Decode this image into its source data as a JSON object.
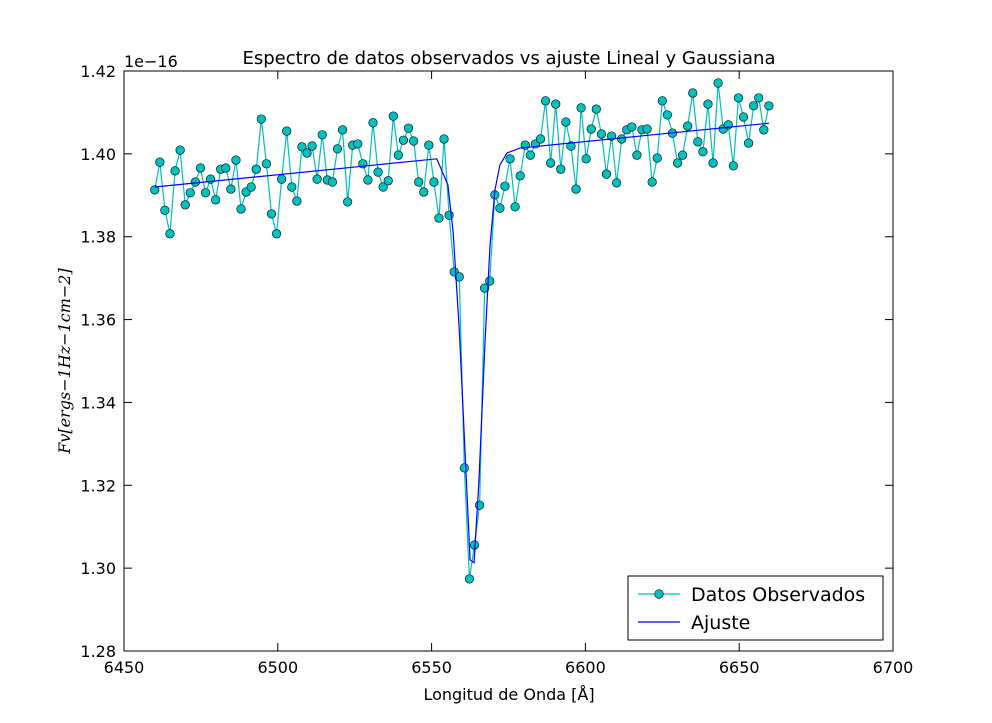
{
  "chart_data": {
    "type": "line",
    "title": "Espectro de datos observados vs ajuste Lineal y Gaussiana",
    "x_label": "Longitud de Onda [Å]",
    "y_label": "Fv[ergs−1Hz−1cm−2]",
    "offset_text": "1e−16",
    "xlim": [
      6450,
      6700
    ],
    "xticks": [
      6450,
      6500,
      6550,
      6600,
      6650,
      6700
    ],
    "ylim": [
      1.28,
      1.42
    ],
    "yticks": [
      1.28,
      {
        "value": 1.3,
        "label": "1.30"
      },
      1.32,
      1.34,
      1.36,
      1.38,
      {
        "value": 1.4,
        "label": "1.40"
      },
      1.42
    ],
    "legend": "lower right",
    "series": [
      {
        "name": "Datos Observados",
        "color": "#00bfbf",
        "marker": "o",
        "x": [
          6460.0,
          6461.65,
          6463.3,
          6464.95,
          6466.6,
          6468.25,
          6469.9,
          6471.55,
          6473.2,
          6474.85,
          6476.5,
          6478.15,
          6479.8,
          6481.45,
          6483.1,
          6484.75,
          6486.4,
          6488.05,
          6489.7,
          6491.35,
          6493.0,
          6494.65,
          6496.3,
          6497.95,
          6499.6,
          6501.25,
          6502.9,
          6504.55,
          6506.2,
          6507.85,
          6509.5,
          6511.15,
          6512.8,
          6514.45,
          6516.1,
          6517.75,
          6519.4,
          6521.05,
          6522.7,
          6524.35,
          6526.0,
          6527.65,
          6529.3,
          6530.95,
          6532.6,
          6534.25,
          6535.9,
          6537.55,
          6539.2,
          6540.85,
          6542.5,
          6544.15,
          6545.8,
          6547.45,
          6549.1,
          6550.75,
          6552.4,
          6554.05,
          6555.7,
          6557.35,
          6559.0,
          6560.65,
          6562.3,
          6563.95,
          6565.6,
          6567.25,
          6568.9,
          6570.55,
          6572.2,
          6573.85,
          6575.5,
          6577.15,
          6578.8,
          6580.45,
          6582.1,
          6583.75,
          6585.4,
          6587.05,
          6588.7,
          6590.35,
          6592.0,
          6593.65,
          6595.3,
          6596.95,
          6598.6,
          6600.25,
          6601.9,
          6603.55,
          6605.2,
          6606.85,
          6608.5,
          6610.15,
          6611.8,
          6613.45,
          6615.1,
          6616.75,
          6618.4,
          6620.05,
          6621.7,
          6623.35,
          6625.0,
          6626.65,
          6628.3,
          6629.95,
          6631.6,
          6633.25,
          6634.9,
          6636.55,
          6638.2,
          6639.85,
          6641.5,
          6643.15,
          6644.8,
          6646.45,
          6648.1,
          6649.75,
          6651.4,
          6653.05,
          6654.7,
          6656.35,
          6658.0,
          6659.65
        ],
        "values": [
          1.3913,
          1.398,
          1.3864,
          1.3807,
          1.3959,
          1.4009,
          1.3877,
          1.3906,
          1.3932,
          1.3966,
          1.3906,
          1.3939,
          1.3889,
          1.3963,
          1.3966,
          1.3915,
          1.3985,
          1.3867,
          1.3908,
          1.392,
          1.3963,
          1.4084,
          1.3976,
          1.3855,
          1.3807,
          1.3939,
          1.4055,
          1.392,
          1.3886,
          1.4017,
          1.4002,
          1.4019,
          1.3939,
          1.4046,
          1.3937,
          1.3932,
          1.4012,
          1.4058,
          1.3884,
          1.4021,
          1.4024,
          1.3976,
          1.3937,
          1.4075,
          1.3956,
          1.392,
          1.3935,
          1.4091,
          1.3997,
          1.4033,
          1.4062,
          1.4031,
          1.3932,
          1.3908,
          1.4021,
          1.3932,
          1.3845,
          1.4036,
          1.3852,
          1.3715,
          1.3703,
          1.3242,
          1.2974,
          1.3056,
          1.3152,
          1.3676,
          1.3693,
          1.3901,
          1.3869,
          1.3922,
          1.3988,
          1.3872,
          1.3947,
          1.4021,
          1.3997,
          1.4024,
          1.4036,
          1.4128,
          1.3978,
          1.412,
          1.3963,
          1.4077,
          1.4019,
          1.3915,
          1.4111,
          1.3988,
          1.406,
          1.4108,
          1.4048,
          1.3951,
          1.4043,
          1.393,
          1.4036,
          1.4058,
          1.4065,
          1.3997,
          1.4058,
          1.406,
          1.3932,
          1.399,
          1.4128,
          1.4094,
          1.405,
          1.3978,
          1.3997,
          1.4067,
          1.4147,
          1.4029,
          1.4005,
          1.412,
          1.3978,
          1.4171,
          1.406,
          1.407,
          1.3971,
          1.4135,
          1.4089,
          1.4026,
          1.4116,
          1.4135,
          1.4058,
          1.4116
        ]
      },
      {
        "name": "Ajuste",
        "color": "#0000ff",
        "x": [
          6460.0,
          6551.7,
          6555.3,
          6557.0,
          6559.0,
          6561.0,
          6562.5,
          6563.8,
          6565.4,
          6567.4,
          6569.0,
          6570.6,
          6572.2,
          6574.5,
          6578.7,
          6659.7
        ],
        "values": [
          1.392,
          1.3988,
          1.3925,
          1.3811,
          1.3575,
          1.3261,
          1.302,
          1.3013,
          1.3213,
          1.3551,
          1.378,
          1.3913,
          1.3973,
          1.4002,
          1.4014,
          1.4074
        ]
      }
    ]
  }
}
